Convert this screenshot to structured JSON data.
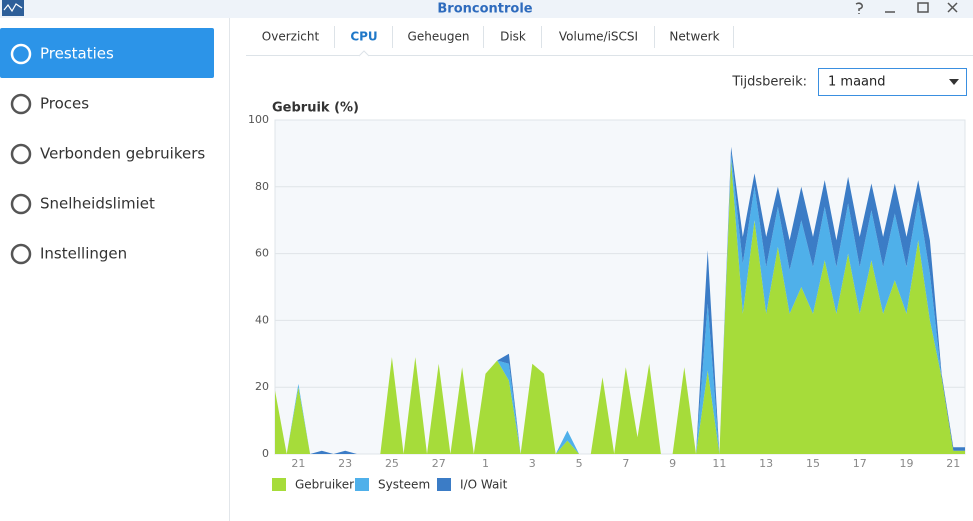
{
  "window": {
    "title": "Broncontrole"
  },
  "sidebar": [
    "Prestaties",
    "Proces",
    "Verbonden gebruikers",
    "Snelheidslimiet",
    "Instellingen"
  ],
  "tabs": [
    "Overzicht",
    "CPU",
    "Geheugen",
    "Disk",
    "Volume/iSCSI",
    "Netwerk"
  ],
  "range": {
    "label": "Tijdsbereik:",
    "value": "1 maand"
  },
  "chart_data": {
    "type": "stacked-area",
    "y_label": "Gebruik (%)",
    "categories": [
      null,
      null,
      "21",
      null,
      null,
      null,
      "23",
      null,
      null,
      null,
      "25",
      null,
      null,
      null,
      "27",
      null,
      null,
      null,
      "1",
      null,
      null,
      null,
      "3",
      null,
      null,
      null,
      "5",
      null,
      null,
      null,
      "7",
      null,
      null,
      null,
      "9",
      null,
      null,
      null,
      "11",
      null,
      null,
      null,
      "13",
      null,
      null,
      null,
      "15",
      null,
      null,
      null,
      "17",
      null,
      null,
      null,
      "19",
      null,
      null,
      null,
      "21",
      null
    ],
    "series": [
      {
        "name": "Gebruiker",
        "color": "#a6dc3a",
        "values": [
          19,
          0,
          20,
          0,
          0,
          0,
          0,
          0,
          0,
          0,
          29,
          0,
          29,
          0,
          27,
          0,
          26,
          0,
          24,
          28,
          22,
          0,
          27,
          24,
          0,
          4,
          0,
          0,
          23,
          0,
          26,
          5,
          27,
          0,
          0,
          26,
          0,
          25,
          0,
          88,
          42,
          70,
          42,
          62,
          42,
          50,
          42,
          58,
          42,
          60,
          42,
          58,
          42,
          52,
          42,
          64,
          40,
          23,
          1,
          1
        ]
      },
      {
        "name": "Systeem",
        "color": "#4fb0ea",
        "values": [
          0,
          0,
          1,
          0,
          0,
          0,
          0,
          0,
          0,
          0,
          0,
          0,
          0,
          0,
          0,
          0,
          0,
          0,
          0,
          0,
          5,
          0,
          0,
          0,
          0,
          3,
          0,
          0,
          0,
          0,
          0,
          0,
          0,
          0,
          0,
          0,
          0,
          20,
          0,
          2,
          15,
          10,
          14,
          12,
          13,
          20,
          14,
          16,
          14,
          15,
          14,
          15,
          14,
          20,
          14,
          12,
          14,
          0,
          0,
          0
        ]
      },
      {
        "name": "I/O Wait",
        "color": "#3b7cc6",
        "values": [
          0,
          0,
          0,
          0,
          1,
          0,
          1,
          0,
          0,
          0,
          0,
          0,
          0,
          0,
          0,
          0,
          0,
          0,
          0,
          0,
          3,
          0,
          0,
          0,
          0,
          0,
          0,
          0,
          0,
          0,
          0,
          0,
          0,
          0,
          0,
          0,
          0,
          16,
          0,
          2,
          8,
          4,
          9,
          6,
          9,
          10,
          9,
          8,
          8,
          8,
          9,
          8,
          9,
          9,
          9,
          6,
          10,
          1,
          1,
          1
        ]
      }
    ],
    "ylim": [
      0,
      100
    ],
    "yticks": [
      0,
      20,
      40,
      60,
      80,
      100
    ],
    "grid": true
  }
}
